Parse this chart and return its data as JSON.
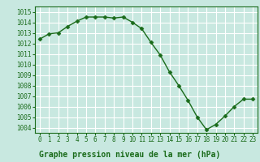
{
  "x": [
    0,
    1,
    2,
    3,
    4,
    5,
    6,
    7,
    8,
    9,
    10,
    11,
    12,
    13,
    14,
    15,
    16,
    17,
    18,
    19,
    20,
    21,
    22,
    23
  ],
  "y": [
    1012.4,
    1012.9,
    1013.0,
    1013.6,
    1014.1,
    1014.5,
    1014.5,
    1014.5,
    1014.4,
    1014.5,
    1014.0,
    1013.4,
    1012.1,
    1010.9,
    1009.3,
    1008.0,
    1006.6,
    1005.0,
    1003.8,
    1004.3,
    1005.1,
    1006.0,
    1006.7,
    1006.7
  ],
  "line_color": "#1a6b1a",
  "marker_color": "#1a6b1a",
  "bg_color": "#c8e8e0",
  "grid_color": "#ffffff",
  "title": "Graphe pression niveau de la mer (hPa)",
  "ylim_min": 1003.5,
  "ylim_max": 1015.5,
  "xlim_min": -0.5,
  "xlim_max": 23.5,
  "yticks": [
    1004,
    1005,
    1006,
    1007,
    1008,
    1009,
    1010,
    1011,
    1012,
    1013,
    1014,
    1015
  ],
  "xticks": [
    0,
    1,
    2,
    3,
    4,
    5,
    6,
    7,
    8,
    9,
    10,
    11,
    12,
    13,
    14,
    15,
    16,
    17,
    18,
    19,
    20,
    21,
    22,
    23
  ],
  "title_color": "#1a6b1a",
  "tick_color": "#1a6b1a",
  "title_fontsize": 7.0,
  "tick_fontsize": 5.5,
  "marker_size": 2.5,
  "line_width": 1.0
}
